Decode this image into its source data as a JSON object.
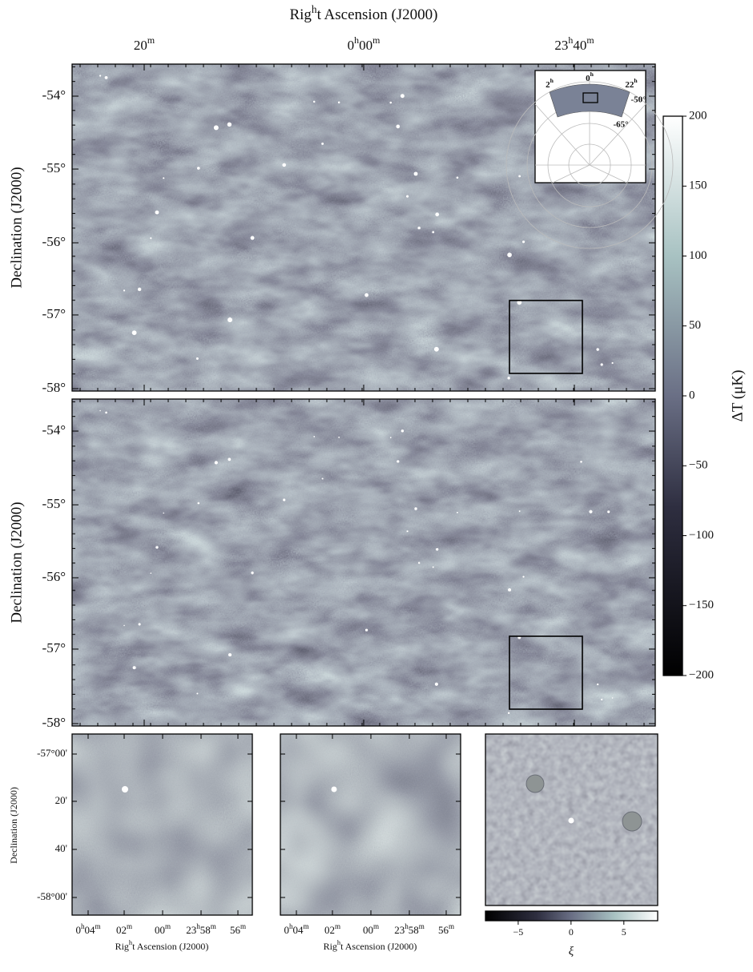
{
  "chart_data": [
    {
      "type": "heatmap",
      "x_label": "Right Ascension (J2000)",
      "x_tick_labels": [
        "20m",
        "0h00m",
        "23h40m"
      ],
      "y_label": "Declination (J2000)",
      "y_tick_labels": [
        "-54°",
        "-55°",
        "-56°",
        "-57°",
        "-58°"
      ],
      "inset_labels": [
        "0h",
        "2h",
        "22h",
        "-50°",
        "-65°"
      ]
    },
    {
      "type": "heatmap",
      "y_label": "Declination (J2000)",
      "y_tick_labels": [
        "-54°",
        "-55°",
        "-56°",
        "-57°",
        "-58°"
      ]
    },
    {
      "type": "colorbar",
      "label": "ΔT (μK)",
      "zlim": [
        -200,
        200
      ],
      "zticks": [
        200,
        150,
        100,
        50,
        0,
        {
          "value": -50,
          "label": "−50"
        },
        {
          "value": -100,
          "label": "−100"
        },
        {
          "value": -150,
          "label": "−150"
        },
        {
          "value": -200,
          "label": "−200"
        }
      ]
    },
    {
      "type": "heatmap",
      "x_label": "Right Ascension (J2000)",
      "x_tick_labels": [
        "0h04m",
        "02m",
        "00m",
        "23h58m",
        "56m"
      ],
      "y_label": "Declination (J2000)",
      "y_tick_labels": [
        "-57°00'",
        "20'",
        "40'",
        "-58°00'"
      ]
    },
    {
      "type": "heatmap",
      "x_label": "Right Ascension (J2000)",
      "x_tick_labels": [
        "0h04m",
        "02m",
        "00m",
        "23h58m",
        "56m"
      ]
    },
    {
      "type": "colorbar",
      "label": "ξ",
      "zlim": [
        -8.1,
        8.2
      ],
      "zticks": [
        {
          "value": -5,
          "label": "−5"
        },
        0,
        5
      ]
    }
  ]
}
